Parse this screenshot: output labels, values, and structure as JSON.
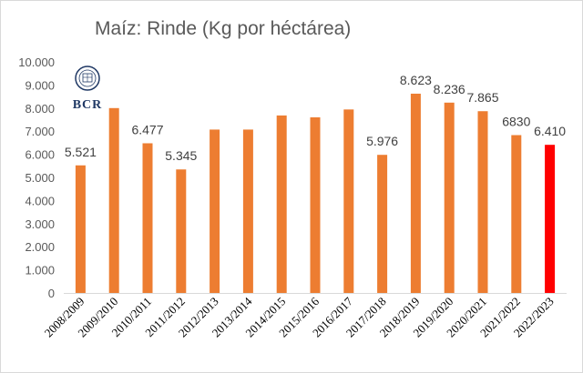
{
  "chart_data": {
    "type": "bar",
    "title": "Maíz: Rinde (Kg por héctárea)",
    "categories": [
      "2008/2009",
      "2009/2010",
      "2010/2011",
      "2011/2012",
      "2012/2013",
      "2013/2014",
      "2014/2015",
      "2015/2016",
      "2016/2017",
      "2017/2018",
      "2018/2019",
      "2019/2020",
      "2020/2021",
      "2021/2022",
      "2022/2023"
    ],
    "values": [
      5521,
      8000,
      6477,
      5345,
      7070,
      7070,
      7680,
      7600,
      7940,
      5976,
      8623,
      8236,
      7865,
      6830,
      6410
    ],
    "data_labels": [
      "5.521",
      "",
      "6.477",
      "5.345",
      "",
      "",
      "",
      "",
      "",
      "5.976",
      "8.623",
      "8.236",
      "7.865",
      "6830",
      "6.410"
    ],
    "y_ticks": [
      "0",
      "1.000",
      "2.000",
      "3.000",
      "4.000",
      "5.000",
      "6.000",
      "7.000",
      "8.000",
      "9.000",
      "10.000"
    ],
    "ylim": [
      0,
      10000
    ],
    "xlabel": "",
    "ylabel": "",
    "grid": false,
    "colors": {
      "bar": "#ed7d31",
      "highlight_bar": "#ff0000",
      "highlight_label": "#ff0000",
      "label": "#404040"
    },
    "highlight_index": 14
  },
  "logo": {
    "text": "BCR",
    "icon": "bcr-emblem"
  }
}
